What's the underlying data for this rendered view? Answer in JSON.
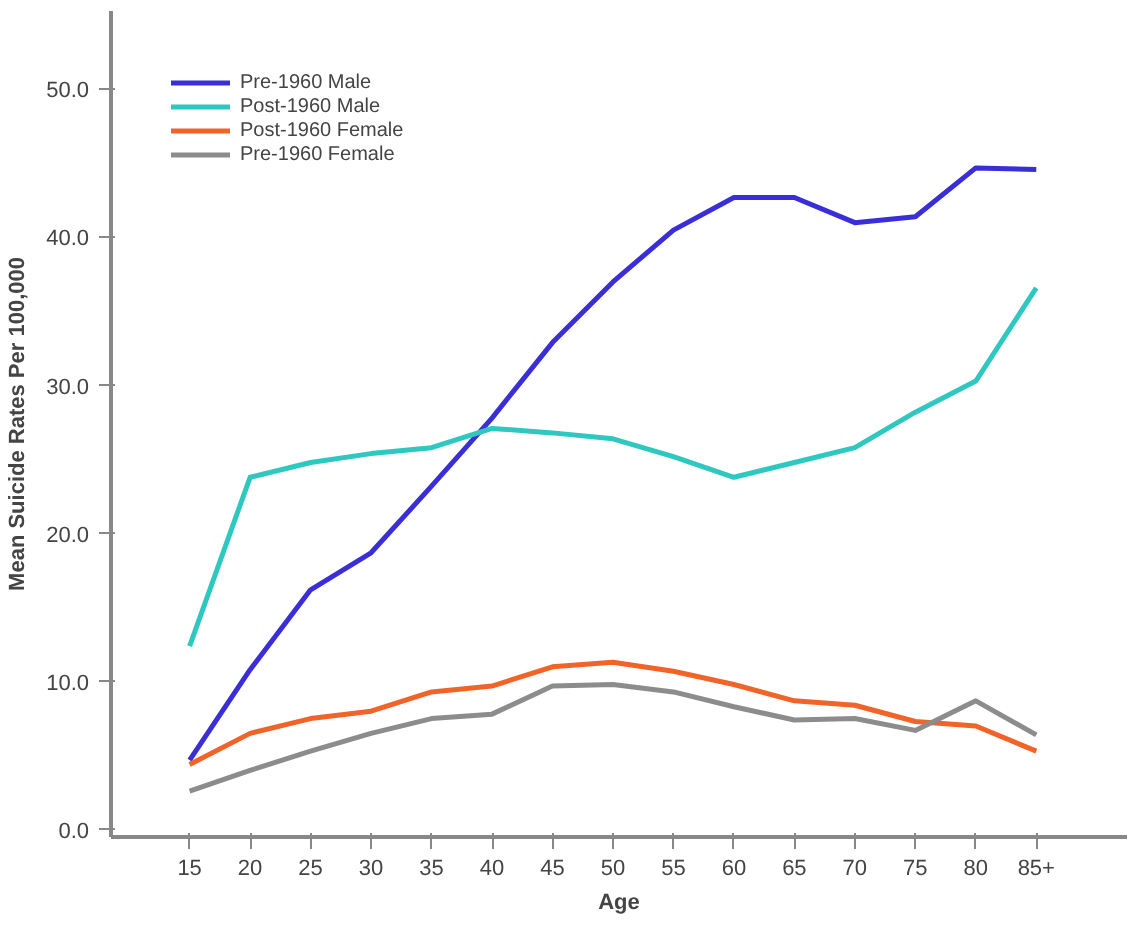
{
  "chart_data": {
    "type": "line",
    "xlabel": "Age",
    "ylabel": "Mean Suicide Rates Per 100,000",
    "categories": [
      "15",
      "20",
      "25",
      "30",
      "35",
      "40",
      "45",
      "50",
      "55",
      "60",
      "65",
      "70",
      "75",
      "80",
      "85+"
    ],
    "ylim": [
      -0.5,
      55.3
    ],
    "yticks": [
      {
        "value": 0,
        "label": "0.0"
      },
      {
        "value": 10,
        "label": "10.0"
      },
      {
        "value": 20,
        "label": "20.0"
      },
      {
        "value": 30,
        "label": "30.0"
      },
      {
        "value": 40,
        "label": "40.0"
      },
      {
        "value": 50,
        "label": "50.0"
      }
    ],
    "grid": false,
    "legend": "top left",
    "marker": "none",
    "line_style": "solid",
    "series": [
      {
        "name": "Pre-1960 Male",
        "color": "#3a2fd6",
        "values": [
          4.7,
          10.8,
          16.2,
          18.7,
          23.2,
          27.8,
          32.9,
          37.0,
          40.5,
          42.7,
          42.7,
          41.0,
          41.4,
          44.7,
          44.6
        ]
      },
      {
        "name": "Post-1960 Male",
        "color": "#2ec8c0",
        "values": [
          12.4,
          23.8,
          24.8,
          25.4,
          25.8,
          27.1,
          26.8,
          26.4,
          25.2,
          23.8,
          24.8,
          25.8,
          28.2,
          30.3,
          36.6
        ]
      },
      {
        "name": "Post-1960 Female",
        "color": "#f0642a",
        "values": [
          4.4,
          6.5,
          7.5,
          8.0,
          9.3,
          9.7,
          11.0,
          11.3,
          10.7,
          9.8,
          8.7,
          8.4,
          7.3,
          7.0,
          5.3
        ]
      },
      {
        "name": "Pre-1960 Female",
        "color": "#8c8c8c",
        "values": [
          2.6,
          4.0,
          5.3,
          6.5,
          7.5,
          7.8,
          9.7,
          9.8,
          9.3,
          8.3,
          7.4,
          7.5,
          6.7,
          8.7,
          6.4
        ]
      }
    ]
  }
}
